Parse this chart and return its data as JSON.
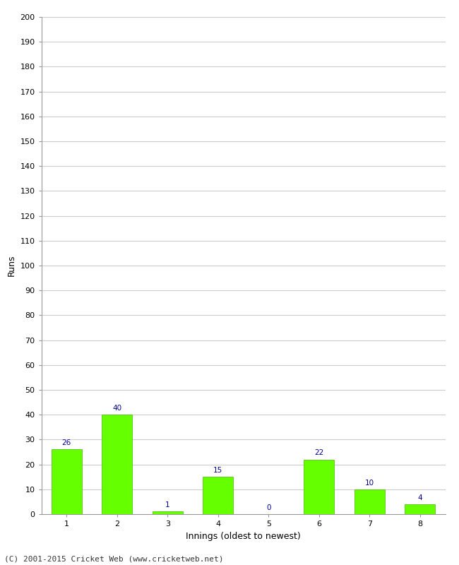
{
  "xlabel": "Innings (oldest to newest)",
  "ylabel": "Runs",
  "categories": [
    "1",
    "2",
    "3",
    "4",
    "5",
    "6",
    "7",
    "8"
  ],
  "values": [
    26,
    40,
    1,
    15,
    0,
    22,
    10,
    4
  ],
  "bar_color": "#66ff00",
  "bar_edge_color": "#44bb00",
  "label_color": "#000099",
  "ylim": [
    0,
    200
  ],
  "yticks": [
    0,
    10,
    20,
    30,
    40,
    50,
    60,
    70,
    80,
    90,
    100,
    110,
    120,
    130,
    140,
    150,
    160,
    170,
    180,
    190,
    200
  ],
  "background_color": "#ffffff",
  "grid_color": "#cccccc",
  "footer_text": "(C) 2001-2015 Cricket Web (www.cricketweb.net)",
  "label_fontsize": 7.5,
  "axis_fontsize": 8,
  "ylabel_fontsize": 8,
  "footer_fontsize": 8
}
